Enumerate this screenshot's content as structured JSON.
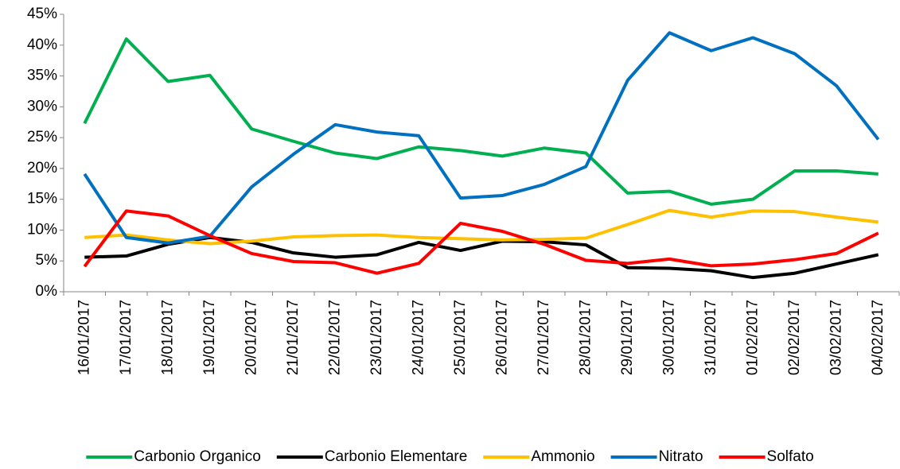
{
  "chart_data": {
    "type": "line",
    "categories": [
      "16/01/2017",
      "17/01/2017",
      "18/01/2017",
      "19/01/2017",
      "20/01/2017",
      "21/01/2017",
      "22/01/2017",
      "23/01/2017",
      "24/01/2017",
      "25/01/2017",
      "26/01/2017",
      "27/01/2017",
      "28/01/2017",
      "29/01/2017",
      "30/01/2017",
      "31/01/2017",
      "01/02/2017",
      "02/02/2017",
      "03/02/2017",
      "04/02/2017"
    ],
    "series": [
      {
        "name": "Carbonio Organico",
        "color": "#00b050",
        "values": [
          27.3,
          41,
          34.1,
          35.1,
          26.4,
          24.4,
          22.5,
          21.6,
          23.5,
          22.9,
          22,
          23.3,
          22.5,
          16,
          16.3,
          14.2,
          15,
          19.6,
          19.6,
          19.1
        ]
      },
      {
        "name": "Carbonio Elementare",
        "color": "#000000",
        "values": [
          5.6,
          5.8,
          7.7,
          8.8,
          8,
          6.3,
          5.6,
          6,
          8,
          6.7,
          8.2,
          8.1,
          7.6,
          3.9,
          3.8,
          3.4,
          2.3,
          3,
          4.5,
          6
        ]
      },
      {
        "name": "Ammonio",
        "color": "#ffc000",
        "values": [
          8.8,
          9.2,
          8.4,
          7.8,
          8.2,
          8.9,
          9.1,
          9.2,
          8.8,
          8.6,
          8.4,
          8.5,
          8.7,
          10.9,
          13.2,
          12.1,
          13.1,
          13,
          12.1,
          11.3
        ]
      },
      {
        "name": "Nitrato",
        "color": "#0070c0",
        "values": [
          19.1,
          8.8,
          7.9,
          9,
          17,
          22.3,
          27.1,
          25.9,
          25.3,
          15.2,
          15.6,
          17.4,
          20.3,
          34.3,
          42,
          39.1,
          41.2,
          38.6,
          33.4,
          24.7
        ]
      },
      {
        "name": "Solfato",
        "color": "#ff0000",
        "values": [
          4.1,
          13.1,
          12.3,
          9.1,
          6.2,
          4.9,
          4.7,
          3,
          4.6,
          11.1,
          9.8,
          7.7,
          5.1,
          4.6,
          5.3,
          4.2,
          4.5,
          5.2,
          6.2,
          9.5
        ]
      }
    ],
    "ylim": [
      0,
      45
    ],
    "yticks": [
      {
        "value": 0,
        "label": "0%"
      },
      {
        "value": 5,
        "label": "5%"
      },
      {
        "value": 10,
        "label": "10%"
      },
      {
        "value": 15,
        "label": "15%"
      },
      {
        "value": 20,
        "label": "20%"
      },
      {
        "value": 25,
        "label": "25%"
      },
      {
        "value": 30,
        "label": "30%"
      },
      {
        "value": 35,
        "label": "35%"
      },
      {
        "value": 40,
        "label": "40%"
      },
      {
        "value": 45,
        "label": "45%"
      }
    ],
    "grid": false,
    "legend": "bottom"
  }
}
